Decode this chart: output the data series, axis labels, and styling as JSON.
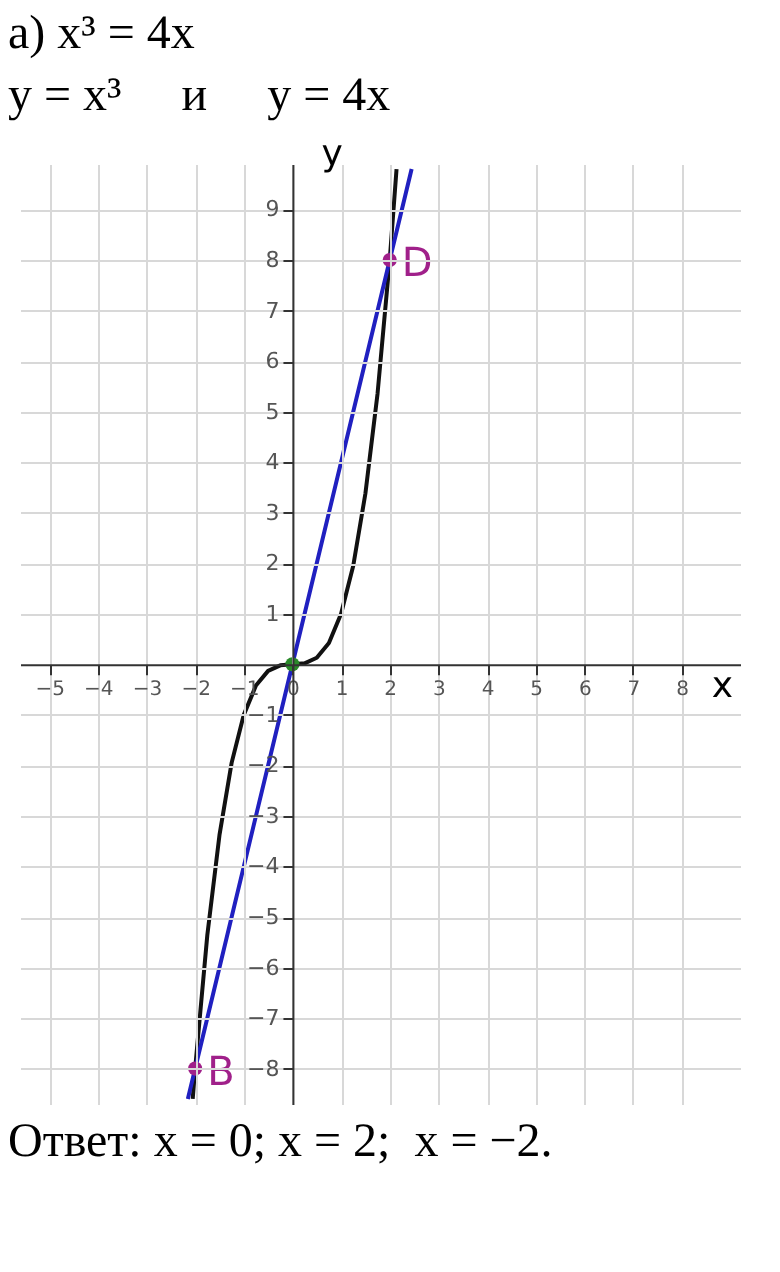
{
  "chart_data": {
    "type": "line",
    "title": "а) x³ = 4x",
    "subtitle": "y = x³     и     y = 4x",
    "xlabel": "x",
    "ylabel": "y",
    "xlim": [
      -5.6,
      9.2
    ],
    "ylim": [
      -8.7,
      9.9
    ],
    "xticks": [
      -5,
      -4,
      -3,
      -2,
      -1,
      0,
      1,
      2,
      3,
      4,
      5,
      6,
      7,
      8
    ],
    "yticks": [
      -8,
      -7,
      -6,
      -5,
      -4,
      -3,
      -2,
      -1,
      1,
      2,
      3,
      4,
      5,
      6,
      7,
      8,
      9
    ],
    "grid": true,
    "series": [
      {
        "color": "#111111",
        "x": [
          -2.05,
          -2,
          -1.75,
          -1.5,
          -1.25,
          -1,
          -0.75,
          -0.5,
          -0.25,
          0,
          0.25,
          0.5,
          0.75,
          1,
          1.25,
          1.5,
          1.75,
          2,
          2.14
        ],
        "values": [
          -8.6,
          -8,
          -5.36,
          -3.38,
          -1.95,
          -1,
          -0.42,
          -0.13,
          -0.02,
          0,
          0.02,
          0.13,
          0.42,
          1,
          1.95,
          3.38,
          5.36,
          8,
          9.8
        ]
      },
      {
        "color": "#2020c0",
        "x": [
          -2.15,
          0,
          2.45
        ],
        "values": [
          -8.6,
          0,
          9.8
        ]
      },
      {
        "type": "scatter",
        "colors": [
          "#a0208a",
          "#2a8a2a",
          "#a0208a"
        ],
        "x": [
          -2,
          0,
          2
        ],
        "values": [
          -8,
          0,
          8
        ]
      }
    ],
    "annotations": [
      {
        "text": "D",
        "x": 2,
        "y": 8
      },
      {
        "text": "B",
        "x": -2,
        "y": -8
      },
      "Ответ: x = 0; x = 2;  x = −2."
    ]
  }
}
